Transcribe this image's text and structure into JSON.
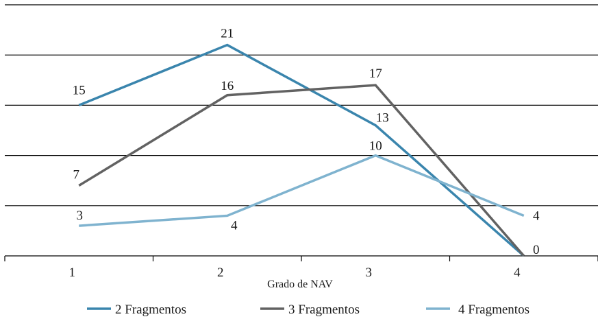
{
  "chart_data": {
    "type": "line",
    "title": "",
    "xlabel": "Grado de NAV",
    "ylabel": "",
    "x": [
      "1",
      "2",
      "3",
      "4"
    ],
    "ylim": [
      0,
      25
    ],
    "y_grid_step": 5,
    "grid": true,
    "legend_position": "bottom",
    "series": [
      {
        "name": "2 Fragmentos",
        "color": "#3a85ad",
        "values": [
          15,
          21,
          13,
          0
        ]
      },
      {
        "name": "3 Fragmentos",
        "color": "#626262",
        "values": [
          7,
          16,
          17,
          0
        ]
      },
      {
        "name": "4 Fragmentos",
        "color": "#7fb3cf",
        "values": [
          3,
          4,
          10,
          4
        ]
      }
    ],
    "data_labels": [
      {
        "series": 0,
        "point": 0,
        "text": "15"
      },
      {
        "series": 0,
        "point": 1,
        "text": "21"
      },
      {
        "series": 0,
        "point": 2,
        "text": "13"
      },
      {
        "series": 1,
        "point": 0,
        "text": "7"
      },
      {
        "series": 1,
        "point": 1,
        "text": "16"
      },
      {
        "series": 1,
        "point": 2,
        "text": "17"
      },
      {
        "series": 2,
        "point": 0,
        "text": "3"
      },
      {
        "series": 2,
        "point": 1,
        "text": "4"
      },
      {
        "series": 2,
        "point": 2,
        "text": "10"
      },
      {
        "series": 2,
        "point": 3,
        "text": "4"
      },
      {
        "series": 1,
        "point": 3,
        "text": "0"
      }
    ]
  }
}
